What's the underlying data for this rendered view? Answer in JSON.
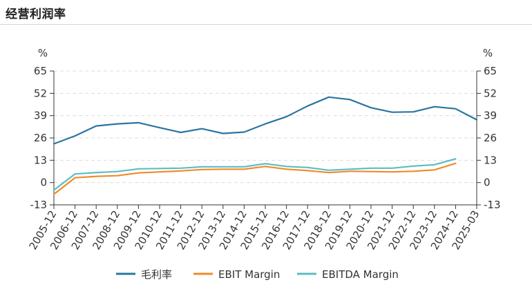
{
  "header": {
    "title": "经营利润率"
  },
  "chart_data": {
    "type": "line",
    "title": "经营利润率",
    "y_unit_left": "%",
    "y_unit_right": "%",
    "ylim": [
      -13,
      65
    ],
    "yticks": [
      -13,
      0,
      13,
      26,
      39,
      52,
      65
    ],
    "grid": true,
    "legend_position": "bottom",
    "categories": [
      "2005-12",
      "2006-12",
      "2007-12",
      "2008-12",
      "2009-12",
      "2010-12",
      "2011-12",
      "2012-12",
      "2013-12",
      "2014-12",
      "2015-12",
      "2016-12",
      "2017-12",
      "2018-12",
      "2019-12",
      "2020-12",
      "2021-12",
      "2022-12",
      "2023-12",
      "2024-12",
      "2025-03"
    ],
    "series": [
      {
        "name": "毛利率",
        "color": "#2a74a0",
        "values": [
          22.6,
          27.2,
          33.0,
          34.2,
          34.9,
          32.0,
          29.2,
          31.4,
          28.6,
          29.4,
          34.2,
          38.4,
          44.6,
          49.8,
          48.4,
          43.6,
          41.0,
          41.2,
          44.2,
          43.0,
          36.6
        ]
      },
      {
        "name": "EBIT Margin",
        "color": "#f08a24",
        "values": [
          -6.8,
          2.8,
          3.6,
          4.0,
          5.6,
          6.2,
          6.8,
          7.6,
          7.8,
          7.8,
          9.4,
          7.8,
          7.0,
          5.8,
          6.6,
          6.4,
          6.2,
          6.6,
          7.4,
          11.2,
          null
        ]
      },
      {
        "name": "EBITDA Margin",
        "color": "#5bbcc4",
        "values": [
          -4.4,
          5.0,
          5.8,
          6.4,
          8.0,
          8.2,
          8.4,
          9.2,
          9.2,
          9.2,
          11.0,
          9.4,
          8.8,
          7.2,
          7.8,
          8.4,
          8.4,
          9.6,
          10.4,
          13.8,
          null
        ]
      }
    ]
  }
}
